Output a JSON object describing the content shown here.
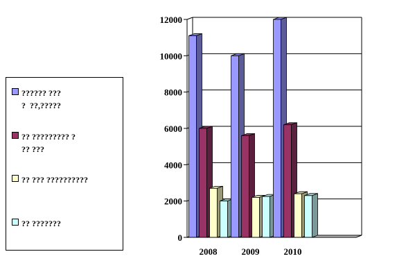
{
  "chart_data": {
    "type": "bar",
    "categories": [
      "2008",
      "2009",
      "2010"
    ],
    "series": [
      {
        "name": "?????? ???\n?  ??,?????",
        "values": [
          11100,
          10000,
          12000
        ],
        "color": "#9999ff"
      },
      {
        "name": "?? ????????? ?\n?? ???",
        "values": [
          6000,
          5600,
          6200
        ],
        "color": "#993366"
      },
      {
        "name": "?? ??? ??????????",
        "values": [
          2700,
          2200,
          2400
        ],
        "color": "#ffffcc"
      },
      {
        "name": "?? ???????",
        "values": [
          2000,
          2250,
          2300
        ],
        "color": "#ccffff"
      }
    ],
    "ylim": [
      0,
      12000
    ],
    "yticks": [
      0,
      2000,
      4000,
      6000,
      8000,
      10000,
      12000
    ],
    "grid": true,
    "legend_position": "left",
    "title": "",
    "xlabel": "",
    "ylabel": ""
  }
}
